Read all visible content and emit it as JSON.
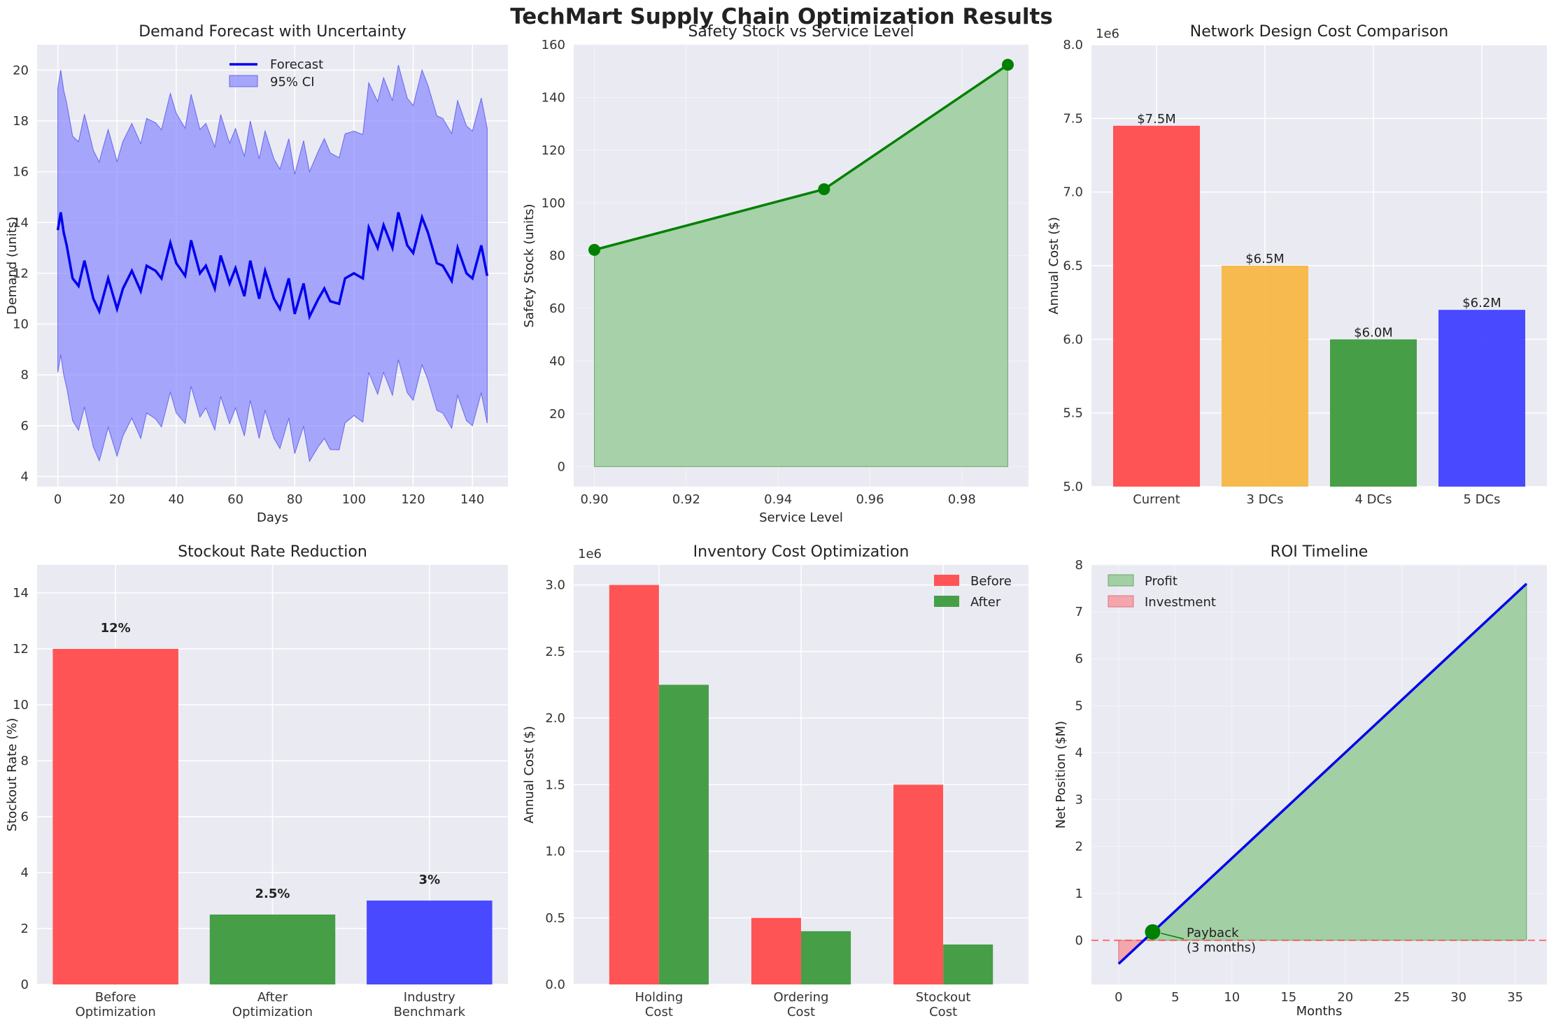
{
  "figure_title": "TechMart Supply Chain Optimization Results",
  "chart_data": [
    {
      "id": "demand",
      "type": "line",
      "title": "Demand Forecast with Uncertainty",
      "xlabel": "Days",
      "ylabel": "Demand (units)",
      "xlim": [
        -7,
        152
      ],
      "ylim": [
        3.6,
        21
      ],
      "xticks": [
        0,
        20,
        40,
        60,
        80,
        100,
        120,
        140
      ],
      "yticks": [
        4,
        6,
        8,
        10,
        12,
        14,
        16,
        18,
        20
      ],
      "legend": {
        "placement": "top-center",
        "entries": [
          "Forecast",
          "95% CI"
        ]
      },
      "colors": {
        "line": "#0000ee",
        "band": "#8080ff"
      },
      "series": [
        {
          "name": "Forecast",
          "anchors_x": [
            0,
            1,
            2,
            3,
            5,
            7,
            9,
            12,
            14,
            17,
            20,
            22,
            25,
            28,
            30,
            33,
            35,
            38,
            40,
            43,
            45,
            48,
            50,
            53,
            55,
            58,
            60,
            63,
            65,
            68,
            70,
            73,
            75,
            78,
            80,
            83,
            85,
            88,
            90,
            92,
            95,
            97,
            100,
            103,
            105,
            108,
            110,
            113,
            115,
            118,
            120,
            123,
            125,
            128,
            130,
            133,
            135,
            138,
            140,
            143,
            145
          ],
          "anchors_y": [
            13.7,
            14.4,
            13.6,
            13.1,
            11.8,
            11.5,
            12.5,
            11.0,
            10.5,
            11.8,
            10.6,
            11.4,
            12.1,
            11.3,
            12.3,
            12.1,
            11.8,
            13.2,
            12.4,
            11.9,
            13.3,
            12.0,
            12.3,
            11.4,
            12.7,
            11.6,
            12.2,
            11.1,
            12.5,
            11.0,
            12.1,
            11.0,
            10.6,
            11.8,
            10.4,
            11.6,
            10.3,
            11.0,
            11.4,
            10.9,
            10.8,
            11.8,
            12.0,
            11.8,
            13.8,
            13.0,
            13.9,
            13.0,
            14.4,
            13.1,
            12.8,
            14.2,
            13.6,
            12.4,
            12.3,
            11.7,
            13.0,
            12.0,
            11.8,
            13.1,
            11.9
          ],
          "band_halfwidth_anchors_x": [
            0,
            5,
            10,
            15,
            20,
            30,
            40,
            50,
            60,
            70,
            80,
            90,
            100,
            110,
            120,
            130,
            140,
            145
          ],
          "band_halfwidth_anchors_y": [
            5.6,
            5.6,
            5.8,
            5.9,
            5.8,
            5.8,
            5.9,
            5.6,
            5.5,
            5.5,
            5.5,
            5.9,
            5.6,
            5.8,
            5.8,
            5.8,
            5.8,
            5.8
          ]
        }
      ]
    },
    {
      "id": "safety",
      "type": "line",
      "title": "Safety Stock vs Service Level",
      "xlabel": "Service Level",
      "ylabel": "Safety Stock (units)",
      "xlim": [
        0.8955,
        0.9945
      ],
      "ylim": [
        -7.6,
        160
      ],
      "xticks": [
        0.9,
        0.92,
        0.94,
        0.96,
        0.98
      ],
      "yticks": [
        0,
        20,
        40,
        60,
        80,
        100,
        120,
        140,
        160
      ],
      "x": [
        0.9,
        0.95,
        0.99
      ],
      "values": [
        82.2,
        105.2,
        152.4
      ],
      "colors": {
        "line": "#008000",
        "fill": "#90c890"
      }
    },
    {
      "id": "network",
      "type": "bar",
      "title": "Network Design Cost Comparison",
      "xlabel": "",
      "ylabel": "Annual Cost ($)",
      "offset_label": "1e6",
      "ylim": [
        5.0,
        8.0
      ],
      "yticks": [
        5.0,
        5.5,
        6.0,
        6.5,
        7.0,
        7.5,
        8.0
      ],
      "categories": [
        "Current",
        "3 DCs",
        "4 DCs",
        "5 DCs"
      ],
      "values": [
        7.45,
        6.5,
        6.0,
        6.2
      ],
      "data_labels": [
        "$7.5M",
        "$6.5M",
        "$6.0M",
        "$6.2M"
      ],
      "colors": [
        "#ff4c4c",
        "#f7b744",
        "#3d9a3d",
        "#4040ff"
      ]
    },
    {
      "id": "stockout",
      "type": "bar",
      "title": "Stockout Rate Reduction",
      "xlabel": "",
      "ylabel": "Stockout Rate (%)",
      "ylim": [
        0,
        15
      ],
      "yticks": [
        0,
        2,
        4,
        6,
        8,
        10,
        12,
        14
      ],
      "categories": [
        [
          "Before",
          "Optimization"
        ],
        [
          "After",
          "Optimization"
        ],
        [
          "Industry",
          "Benchmark"
        ]
      ],
      "values": [
        12,
        2.5,
        3
      ],
      "data_labels": [
        "12%",
        "2.5%",
        "3%"
      ],
      "colors": [
        "#ff4c4c",
        "#3d9a3d",
        "#4040ff"
      ]
    },
    {
      "id": "inventory",
      "type": "bar",
      "title": "Inventory Cost Optimization",
      "xlabel": "",
      "ylabel": "Annual Cost ($)",
      "offset_label": "1e6",
      "ylim": [
        0,
        3.15
      ],
      "yticks": [
        0.0,
        0.5,
        1.0,
        1.5,
        2.0,
        2.5,
        3.0
      ],
      "categories": [
        [
          "Holding",
          "Cost"
        ],
        [
          "Ordering",
          "Cost"
        ],
        [
          "Stockout",
          "Cost"
        ]
      ],
      "legend": {
        "placement": "top-right",
        "entries": [
          "Before",
          "After"
        ]
      },
      "series": [
        {
          "name": "Before",
          "values": [
            3.0,
            0.5,
            1.5
          ],
          "color": "#ff4c4c"
        },
        {
          "name": "After",
          "values": [
            2.25,
            0.4,
            0.3
          ],
          "color": "#3d9a3d"
        }
      ]
    },
    {
      "id": "roi",
      "type": "area",
      "title": "ROI Timeline",
      "xlabel": "Months",
      "ylabel": "Net Position ($M)",
      "xlim": [
        -2.4,
        37.8
      ],
      "ylim": [
        -0.94,
        8.0
      ],
      "xticks": [
        0,
        5,
        10,
        15,
        20,
        25,
        30,
        35
      ],
      "yticks": [
        0,
        1,
        2,
        3,
        4,
        5,
        6,
        7,
        8
      ],
      "x": [
        0,
        36
      ],
      "values": [
        -0.5,
        7.6
      ],
      "legend": {
        "placement": "top-left",
        "entries": [
          "Profit",
          "Investment"
        ]
      },
      "annotation": {
        "x": 3,
        "y": 0.18,
        "lines": [
          "Payback",
          "(3 months)"
        ]
      },
      "colors": {
        "line": "#0000ee",
        "profit": "#90c890",
        "investment": "#f49aa0",
        "marker": "#008000",
        "baseline": "#ff5050"
      }
    }
  ]
}
